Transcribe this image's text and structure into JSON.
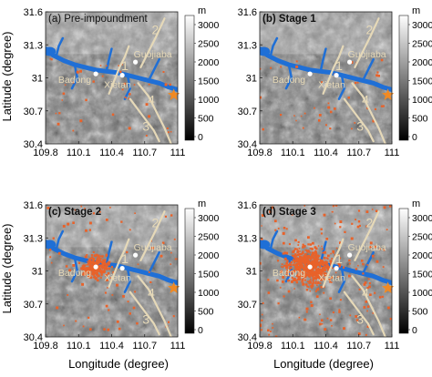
{
  "figure": {
    "xlabel": "Longitude (degree)",
    "ylabel": "Latitude (degree)",
    "x_ticks": [
      "109.8",
      "110.1",
      "110.4",
      "110.7",
      "111"
    ],
    "y_ticks": [
      "31.6",
      "31.3",
      "31",
      "30.7",
      "30.4"
    ],
    "colorbar": {
      "unit": "m",
      "ticks": [
        "3000",
        "2500",
        "2000",
        "1500",
        "1000",
        "500",
        "0"
      ]
    },
    "map_labels": {
      "fault_numbers": [
        "1",
        "2",
        "3",
        "4"
      ],
      "places": [
        "Guojiaba",
        "Badong",
        "Xietan"
      ]
    },
    "panels": [
      {
        "label": "(a) Pre-impoundment",
        "seismicity_level": "low"
      },
      {
        "label": "(b) Stage 1",
        "seismicity_level": "low"
      },
      {
        "label": "(c) Stage 2",
        "seismicity_level": "medium"
      },
      {
        "label": "(d) Stage 3",
        "seismicity_level": "high"
      }
    ]
  },
  "colors": {
    "terrain_dark": "#2a2a2a",
    "terrain_light": "#e8e8e8",
    "river": "#1f6fd6",
    "events": "#e8622a",
    "faults": "#e6d9b8",
    "star": "#f08a24",
    "town": "#ffffff"
  }
}
